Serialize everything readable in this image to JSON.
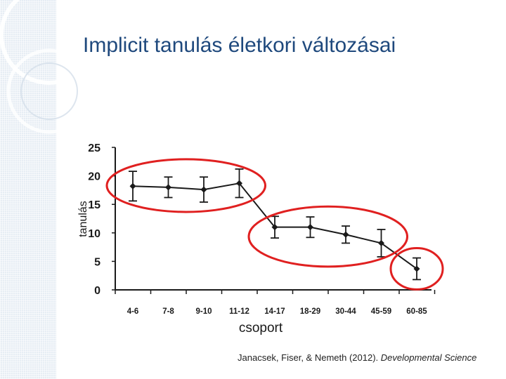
{
  "slide": {
    "title": "Implicit tanulás életkori változásai",
    "citation_authors": "Janacsek, Fiser, & Nemeth (2012). ",
    "citation_journal": "Developmental Science"
  },
  "colors": {
    "background": "#ffffff",
    "title": "#1f497d",
    "line": "#1a1a1a",
    "highlight": "#e02020",
    "sidebar": "#e6edf4"
  },
  "chart_data": {
    "type": "line",
    "title": "",
    "xlabel": "csoport",
    "ylabel": "tanulás",
    "ylim": [
      0,
      25
    ],
    "yticks": [
      0,
      5,
      10,
      15,
      20,
      25
    ],
    "grid": false,
    "categories": [
      "4-6",
      "7-8",
      "9-10",
      "11-12",
      "14-17",
      "18-29",
      "30-44",
      "45-59",
      "60-85"
    ],
    "series": [
      {
        "values": [
          18.2,
          18.0,
          17.6,
          18.7,
          11.0,
          11.0,
          9.7,
          8.2,
          3.7
        ],
        "error": [
          2.6,
          1.8,
          2.2,
          2.5,
          1.9,
          1.8,
          1.5,
          2.4,
          1.9
        ]
      }
    ],
    "highlight_groups": [
      [
        "4-6",
        "7-8",
        "9-10",
        "11-12"
      ],
      [
        "14-17",
        "18-29",
        "30-44",
        "45-59"
      ],
      [
        "60-85"
      ]
    ]
  }
}
